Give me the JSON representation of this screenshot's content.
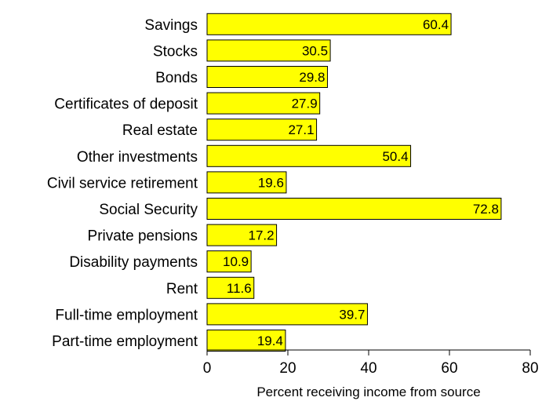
{
  "chart_data": {
    "type": "bar",
    "orientation": "horizontal",
    "title": "",
    "xlabel": "Percent receiving income from source",
    "ylabel": "",
    "xlim": [
      0,
      80
    ],
    "xticks": [
      0,
      20,
      40,
      60,
      80
    ],
    "grid": false,
    "bar_color": "#ffff00",
    "categories": [
      "Savings",
      "Stocks",
      "Bonds",
      "Certificates of deposit",
      "Real estate",
      "Other investments",
      "Civil service retirement",
      "Social Security",
      "Private pensions",
      "Disability payments",
      "Rent",
      "Full-time employment",
      "Part-time employment"
    ],
    "values": [
      60.4,
      30.5,
      29.8,
      27.9,
      27.1,
      50.4,
      19.6,
      72.8,
      17.2,
      10.9,
      11.6,
      39.7,
      19.4
    ]
  }
}
